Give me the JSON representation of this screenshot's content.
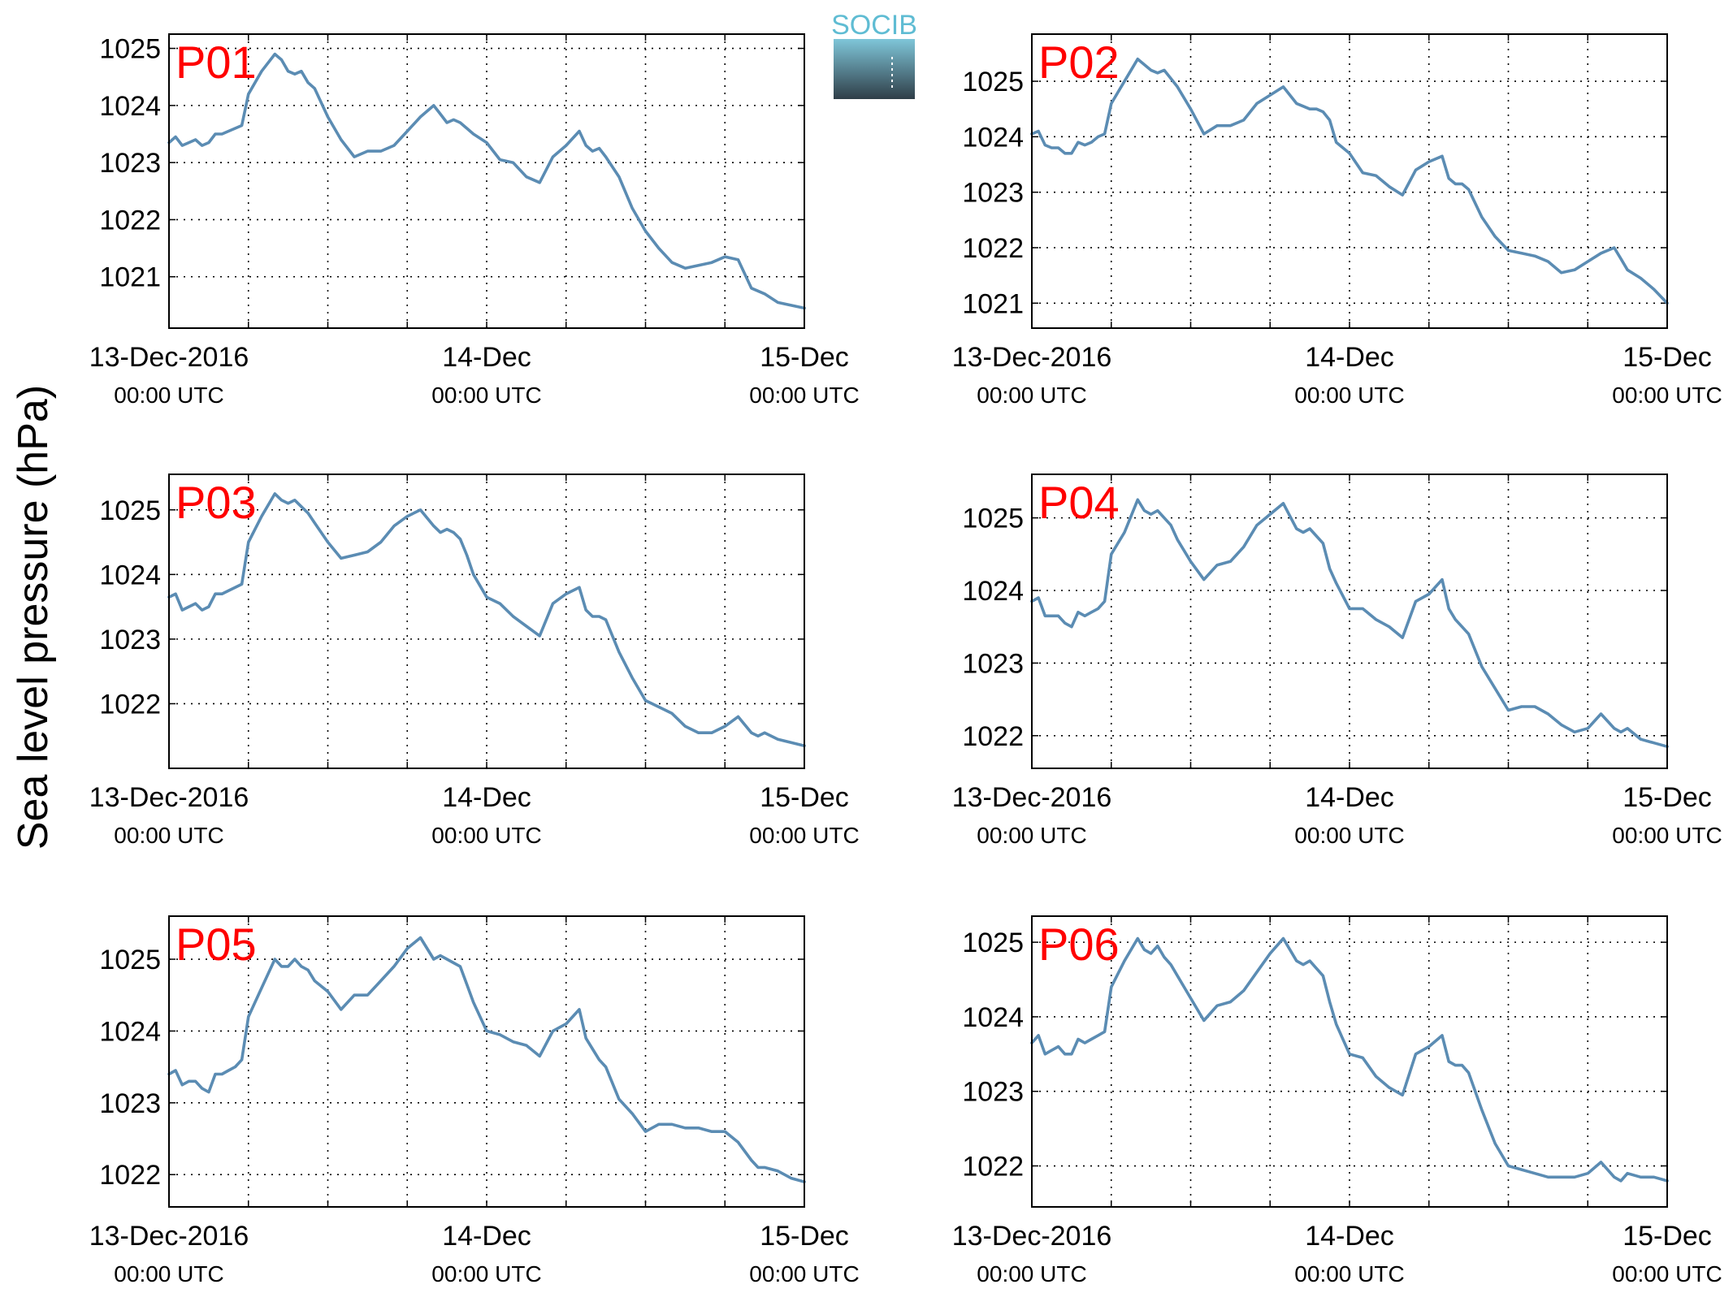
{
  "figure": {
    "ylabel": "Sea level pressure (hPa)",
    "logo_text": "SOCIB"
  },
  "colors": {
    "line": "#5b8cb3",
    "panel_label": "#ff0000",
    "logo_top": "#7fc6d9",
    "logo_bottom": "#2f3e48",
    "logo_text": "#5fbcd3"
  },
  "chart_data": [
    {
      "type": "line",
      "panel": "P01",
      "title": "",
      "xlabel": "",
      "ylabel": "Sea level pressure (hPa)",
      "x_unit": "hours since 13-Dec-2016 00:00 UTC",
      "xlim": [
        0,
        48
      ],
      "ylim": [
        1020.1,
        1025.25
      ],
      "yticks": [
        1021,
        1022,
        1023,
        1024,
        1025
      ],
      "xticks": [
        0,
        24,
        48
      ],
      "xtick_labels": [
        [
          "13-Dec-2016",
          "00:00 UTC"
        ],
        [
          "14-Dec",
          "00:00 UTC"
        ],
        [
          "15-Dec",
          "00:00 UTC"
        ]
      ],
      "grid": true,
      "x": [
        0,
        0.5,
        1,
        1.5,
        2,
        2.5,
        3,
        3.5,
        4,
        4.5,
        5,
        5.5,
        6,
        7,
        8,
        8.5,
        9,
        9.5,
        10,
        10.5,
        11,
        12,
        13,
        14,
        15,
        16,
        17,
        18,
        19,
        20,
        20.5,
        21,
        21.5,
        22,
        22.5,
        23,
        24,
        25,
        26,
        27,
        28,
        29,
        30,
        31,
        31.5,
        32,
        32.5,
        33,
        34,
        35,
        36,
        37,
        38,
        39,
        40,
        41,
        42,
        43,
        44,
        44.5,
        45,
        46,
        47,
        48
      ],
      "y": [
        1023.35,
        1023.45,
        1023.3,
        1023.35,
        1023.4,
        1023.3,
        1023.35,
        1023.5,
        1023.5,
        1023.55,
        1023.6,
        1023.65,
        1024.2,
        1024.6,
        1024.9,
        1024.8,
        1024.6,
        1024.55,
        1024.6,
        1024.4,
        1024.3,
        1023.8,
        1023.4,
        1023.1,
        1023.2,
        1023.2,
        1023.3,
        1023.55,
        1023.8,
        1024.0,
        1023.85,
        1023.7,
        1023.75,
        1023.7,
        1023.6,
        1023.5,
        1023.35,
        1023.05,
        1023.0,
        1022.75,
        1022.65,
        1023.1,
        1023.3,
        1023.55,
        1023.3,
        1023.2,
        1023.25,
        1023.1,
        1022.75,
        1022.2,
        1021.8,
        1021.5,
        1021.25,
        1021.15,
        1021.2,
        1021.25,
        1021.35,
        1021.3,
        1020.8,
        1020.75,
        1020.7,
        1020.55,
        1020.5,
        1020.45
      ]
    },
    {
      "type": "line",
      "panel": "P02",
      "title": "",
      "xlabel": "",
      "ylabel": "Sea level pressure (hPa)",
      "x_unit": "hours since 13-Dec-2016 00:00 UTC",
      "xlim": [
        0,
        48
      ],
      "ylim": [
        1020.55,
        1025.85
      ],
      "yticks": [
        1021,
        1022,
        1023,
        1024,
        1025
      ],
      "xticks": [
        0,
        24,
        48
      ],
      "xtick_labels": [
        [
          "13-Dec-2016",
          "00:00 UTC"
        ],
        [
          "14-Dec",
          "00:00 UTC"
        ],
        [
          "15-Dec",
          "00:00 UTC"
        ]
      ],
      "grid": true,
      "x": [
        0,
        0.5,
        1,
        1.5,
        2,
        2.5,
        3,
        3.5,
        4,
        4.5,
        5,
        5.5,
        6,
        7,
        8,
        8.5,
        9,
        9.5,
        10,
        10.5,
        11,
        12,
        13,
        14,
        15,
        16,
        17,
        18,
        19,
        20,
        20.5,
        21,
        21.5,
        22,
        22.5,
        23,
        24,
        25,
        26,
        27,
        28,
        29,
        30,
        31,
        31.5,
        32,
        32.5,
        33,
        34,
        35,
        36,
        37,
        38,
        39,
        40,
        41,
        42,
        43,
        44,
        44.5,
        45,
        46,
        47,
        48
      ],
      "y": [
        1024.05,
        1024.1,
        1023.85,
        1023.8,
        1023.8,
        1023.7,
        1023.7,
        1023.9,
        1023.85,
        1023.9,
        1024.0,
        1024.05,
        1024.6,
        1025.0,
        1025.4,
        1025.3,
        1025.2,
        1025.15,
        1025.2,
        1025.05,
        1024.9,
        1024.5,
        1024.05,
        1024.2,
        1024.2,
        1024.3,
        1024.6,
        1024.75,
        1024.9,
        1024.6,
        1024.55,
        1024.5,
        1024.5,
        1024.45,
        1024.3,
        1023.9,
        1023.7,
        1023.35,
        1023.3,
        1023.1,
        1022.95,
        1023.4,
        1023.55,
        1023.65,
        1023.25,
        1023.15,
        1023.15,
        1023.05,
        1022.55,
        1022.2,
        1021.95,
        1021.9,
        1021.85,
        1021.75,
        1021.55,
        1021.6,
        1021.75,
        1021.9,
        1022.0,
        1021.8,
        1021.6,
        1021.45,
        1021.25,
        1021.0
      ]
    },
    {
      "type": "line",
      "panel": "P03",
      "title": "",
      "xlabel": "",
      "ylabel": "Sea level pressure (hPa)",
      "x_unit": "hours since 13-Dec-2016 00:00 UTC",
      "xlim": [
        0,
        48
      ],
      "ylim": [
        1021.0,
        1025.55
      ],
      "yticks": [
        1022,
        1023,
        1024,
        1025
      ],
      "xticks": [
        0,
        24,
        48
      ],
      "xtick_labels": [
        [
          "13-Dec-2016",
          "00:00 UTC"
        ],
        [
          "14-Dec",
          "00:00 UTC"
        ],
        [
          "15-Dec",
          "00:00 UTC"
        ]
      ],
      "grid": true,
      "x": [
        0,
        0.5,
        1,
        1.5,
        2,
        2.5,
        3,
        3.5,
        4,
        4.5,
        5,
        5.5,
        6,
        7,
        8,
        8.5,
        9,
        9.5,
        10,
        10.5,
        11,
        12,
        13,
        14,
        15,
        16,
        17,
        18,
        19,
        20,
        20.5,
        21,
        21.5,
        22,
        22.5,
        23,
        24,
        25,
        26,
        27,
        28,
        29,
        30,
        31,
        31.5,
        32,
        32.5,
        33,
        34,
        35,
        36,
        37,
        38,
        39,
        40,
        41,
        42,
        43,
        44,
        44.5,
        45,
        46,
        47,
        48
      ],
      "y": [
        1023.65,
        1023.7,
        1023.45,
        1023.5,
        1023.55,
        1023.45,
        1023.5,
        1023.7,
        1023.7,
        1023.75,
        1023.8,
        1023.85,
        1024.5,
        1024.9,
        1025.25,
        1025.15,
        1025.1,
        1025.15,
        1025.05,
        1024.95,
        1024.8,
        1024.5,
        1024.25,
        1024.3,
        1024.35,
        1024.5,
        1024.75,
        1024.9,
        1025.0,
        1024.75,
        1024.65,
        1024.7,
        1024.65,
        1024.55,
        1024.3,
        1024.0,
        1023.65,
        1023.55,
        1023.35,
        1023.2,
        1023.05,
        1023.55,
        1023.7,
        1023.8,
        1023.45,
        1023.35,
        1023.35,
        1023.3,
        1022.8,
        1022.4,
        1022.05,
        1021.95,
        1021.85,
        1021.65,
        1021.55,
        1021.55,
        1021.65,
        1021.8,
        1021.55,
        1021.5,
        1021.55,
        1021.45,
        1021.4,
        1021.35
      ]
    },
    {
      "type": "line",
      "panel": "P04",
      "title": "",
      "xlabel": "",
      "ylabel": "Sea level pressure (hPa)",
      "x_unit": "hours since 13-Dec-2016 00:00 UTC",
      "xlim": [
        0,
        48
      ],
      "ylim": [
        1021.55,
        1025.6
      ],
      "yticks": [
        1022,
        1023,
        1024,
        1025
      ],
      "xticks": [
        0,
        24,
        48
      ],
      "xtick_labels": [
        [
          "13-Dec-2016",
          "00:00 UTC"
        ],
        [
          "14-Dec",
          "00:00 UTC"
        ],
        [
          "15-Dec",
          "00:00 UTC"
        ]
      ],
      "grid": true,
      "x": [
        0,
        0.5,
        1,
        1.5,
        2,
        2.5,
        3,
        3.5,
        4,
        4.5,
        5,
        5.5,
        6,
        7,
        8,
        8.5,
        9,
        9.5,
        10,
        10.5,
        11,
        12,
        13,
        14,
        15,
        16,
        17,
        18,
        19,
        20,
        20.5,
        21,
        21.5,
        22,
        22.5,
        23,
        24,
        25,
        26,
        27,
        28,
        29,
        30,
        31,
        31.5,
        32,
        32.5,
        33,
        34,
        35,
        36,
        37,
        38,
        39,
        40,
        41,
        42,
        43,
        44,
        44.5,
        45,
        46,
        47,
        48
      ],
      "y": [
        1023.85,
        1023.9,
        1023.65,
        1023.65,
        1023.65,
        1023.55,
        1023.5,
        1023.7,
        1023.65,
        1023.7,
        1023.75,
        1023.85,
        1024.5,
        1024.8,
        1025.25,
        1025.1,
        1025.05,
        1025.1,
        1025.0,
        1024.9,
        1024.7,
        1024.4,
        1024.15,
        1024.35,
        1024.4,
        1024.6,
        1024.9,
        1025.05,
        1025.2,
        1024.85,
        1024.8,
        1024.85,
        1024.75,
        1024.65,
        1024.3,
        1024.1,
        1023.75,
        1023.75,
        1023.6,
        1023.5,
        1023.35,
        1023.85,
        1023.95,
        1024.15,
        1023.75,
        1023.6,
        1023.5,
        1023.4,
        1022.95,
        1022.65,
        1022.35,
        1022.4,
        1022.4,
        1022.3,
        1022.15,
        1022.05,
        1022.1,
        1022.3,
        1022.1,
        1022.05,
        1022.1,
        1021.95,
        1021.9,
        1021.85
      ]
    },
    {
      "type": "line",
      "panel": "P05",
      "title": "",
      "xlabel": "",
      "ylabel": "Sea level pressure (hPa)",
      "x_unit": "hours since 13-Dec-2016 00:00 UTC",
      "xlim": [
        0,
        48
      ],
      "ylim": [
        1021.55,
        1025.6
      ],
      "yticks": [
        1022,
        1023,
        1024,
        1025
      ],
      "xticks": [
        0,
        24,
        48
      ],
      "xtick_labels": [
        [
          "13-Dec-2016",
          "00:00 UTC"
        ],
        [
          "14-Dec",
          "00:00 UTC"
        ],
        [
          "15-Dec",
          "00:00 UTC"
        ]
      ],
      "grid": true,
      "x": [
        0,
        0.5,
        1,
        1.5,
        2,
        2.5,
        3,
        3.5,
        4,
        4.5,
        5,
        5.5,
        6,
        7,
        8,
        8.5,
        9,
        9.5,
        10,
        10.5,
        11,
        12,
        13,
        14,
        15,
        16,
        17,
        18,
        19,
        20,
        20.5,
        21,
        21.5,
        22,
        22.5,
        23,
        24,
        25,
        26,
        27,
        28,
        29,
        30,
        31,
        31.5,
        32,
        32.5,
        33,
        34,
        35,
        36,
        37,
        38,
        39,
        40,
        41,
        42,
        43,
        44,
        44.5,
        45,
        46,
        47,
        48
      ],
      "y": [
        1023.4,
        1023.45,
        1023.25,
        1023.3,
        1023.3,
        1023.2,
        1023.15,
        1023.4,
        1023.4,
        1023.45,
        1023.5,
        1023.6,
        1024.2,
        1024.6,
        1025.0,
        1024.9,
        1024.9,
        1025.0,
        1024.9,
        1024.85,
        1024.7,
        1024.55,
        1024.3,
        1024.5,
        1024.5,
        1024.7,
        1024.9,
        1025.15,
        1025.3,
        1025.0,
        1025.05,
        1025.0,
        1024.95,
        1024.9,
        1024.65,
        1024.4,
        1024.0,
        1023.95,
        1023.85,
        1023.8,
        1023.65,
        1024.0,
        1024.1,
        1024.3,
        1023.9,
        1023.75,
        1023.6,
        1023.5,
        1023.05,
        1022.85,
        1022.6,
        1022.7,
        1022.7,
        1022.65,
        1022.65,
        1022.6,
        1022.6,
        1022.45,
        1022.2,
        1022.1,
        1022.1,
        1022.05,
        1021.95,
        1021.9
      ]
    },
    {
      "type": "line",
      "panel": "P06",
      "title": "",
      "xlabel": "",
      "ylabel": "Sea level pressure (hPa)",
      "x_unit": "hours since 13-Dec-2016 00:00 UTC",
      "xlim": [
        0,
        48
      ],
      "ylim": [
        1021.45,
        1025.35
      ],
      "yticks": [
        1022,
        1023,
        1024,
        1025
      ],
      "xticks": [
        0,
        24,
        48
      ],
      "xtick_labels": [
        [
          "13-Dec-2016",
          "00:00 UTC"
        ],
        [
          "14-Dec",
          "00:00 UTC"
        ],
        [
          "15-Dec",
          "00:00 UTC"
        ]
      ],
      "grid": true,
      "x": [
        0,
        0.5,
        1,
        1.5,
        2,
        2.5,
        3,
        3.5,
        4,
        4.5,
        5,
        5.5,
        6,
        7,
        8,
        8.5,
        9,
        9.5,
        10,
        10.5,
        11,
        12,
        13,
        14,
        15,
        16,
        17,
        18,
        19,
        20,
        20.5,
        21,
        21.5,
        22,
        22.5,
        23,
        24,
        25,
        26,
        27,
        28,
        29,
        30,
        31,
        31.5,
        32,
        32.5,
        33,
        34,
        35,
        36,
        37,
        38,
        39,
        40,
        41,
        42,
        43,
        44,
        44.5,
        45,
        46,
        47,
        48
      ],
      "y": [
        1023.65,
        1023.75,
        1023.5,
        1023.55,
        1023.6,
        1023.5,
        1023.5,
        1023.7,
        1023.65,
        1023.7,
        1023.75,
        1023.8,
        1024.4,
        1024.75,
        1025.05,
        1024.9,
        1024.85,
        1024.95,
        1024.8,
        1024.7,
        1024.55,
        1024.25,
        1023.95,
        1024.15,
        1024.2,
        1024.35,
        1024.6,
        1024.85,
        1025.05,
        1024.75,
        1024.7,
        1024.75,
        1024.65,
        1024.55,
        1024.2,
        1023.9,
        1023.5,
        1023.45,
        1023.2,
        1023.05,
        1022.95,
        1023.5,
        1023.6,
        1023.75,
        1023.4,
        1023.35,
        1023.35,
        1023.25,
        1022.75,
        1022.3,
        1022.0,
        1021.95,
        1021.9,
        1021.85,
        1021.85,
        1021.85,
        1021.9,
        1022.05,
        1021.85,
        1021.8,
        1021.9,
        1021.85,
        1021.85,
        1021.8
      ]
    }
  ]
}
